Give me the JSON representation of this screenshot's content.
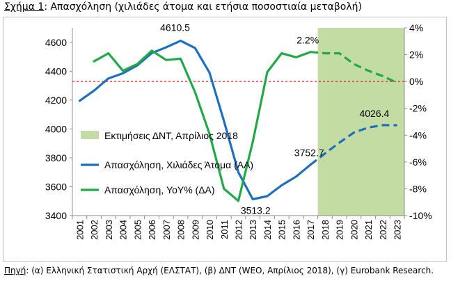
{
  "title": {
    "label": "Σχήμα 1",
    "text": ": Απασχόληση (χιλιάδες άτομα και ετήσια ποσοστιαία μεταβολή)"
  },
  "source": {
    "label": "Πηγή",
    "text": ": (α) Ελληνική Στατιστική Αρχή (ΕΛΣΤΑΤ), (β) ΔΝΤ (WEO, Απρίλιος 2018), (γ) Eurobank Research."
  },
  "colors": {
    "blue": "#1f6fbf",
    "green": "#21a847",
    "shade": "#c3dca4",
    "zero_line": "#e02020",
    "grid": "#d9d9d9"
  },
  "chart_data": {
    "type": "line",
    "x": [
      2001,
      2002,
      2003,
      2004,
      2005,
      2006,
      2007,
      2008,
      2009,
      2010,
      2011,
      2012,
      2013,
      2014,
      2015,
      2016,
      2017,
      2018,
      2019,
      2020,
      2021,
      2022,
      2023
    ],
    "x_tick_labels": [
      "2001",
      "2002",
      "2003",
      "2004",
      "2005",
      "2006",
      "2007",
      "2008",
      "2009",
      "2010",
      "2011",
      "2012",
      "2013",
      "2014",
      "2015",
      "2016",
      "2017",
      "2018",
      "2019",
      "2020",
      "2021",
      "2022",
      "2023"
    ],
    "left_axis": {
      "ylim": [
        3400,
        4700
      ],
      "ticks": [
        3400,
        3600,
        3800,
        4000,
        4200,
        4400,
        4600
      ]
    },
    "right_axis": {
      "ylim": [
        -10,
        4
      ],
      "ticks": [
        -10,
        -8,
        -6,
        -4,
        -2,
        0,
        2,
        4
      ],
      "tick_labels": [
        "-10%",
        "-8%",
        "-6%",
        "-4%",
        "-2%",
        "0%",
        "2%",
        "4%"
      ]
    },
    "shaded_region": {
      "x_range": [
        2017.5,
        2023.5
      ],
      "label": "Εκτιμήσεις ΔΝΤ, Απρίλιος 2018"
    },
    "series": [
      {
        "name": "Απασχόληση, Χιλιάδες Άτομα (ΑΑ)",
        "axis": "left",
        "color": "#1f6fbf",
        "values": [
          4195,
          4265,
          4350,
          4385,
          4440,
          4525,
          4565,
          4610.5,
          4560,
          4390,
          4055,
          3700,
          3513.2,
          3535,
          3610,
          3670,
          3752.7,
          3830,
          3905,
          3975,
          4010,
          4026.4,
          4026
        ],
        "dashed_from": 2017
      },
      {
        "name": "Απασχόληση, YoY% (ΔΑ)",
        "axis": "right",
        "color": "#21a847",
        "values": [
          null,
          1.5,
          2.1,
          0.8,
          1.3,
          2.3,
          1.6,
          1.7,
          -0.8,
          -3.9,
          -8.0,
          -8.9,
          -4.5,
          0.7,
          2.1,
          1.8,
          2.2,
          2.1,
          2.1,
          1.3,
          0.8,
          0.4,
          -0.1
        ],
        "dashed_from": 2017
      }
    ],
    "zero_reference": {
      "axis": "right",
      "value": 0,
      "style": "dashed"
    },
    "annotations": [
      {
        "text": "4610.5",
        "x": 2008,
        "y": 4610.5,
        "axis": "left"
      },
      {
        "text": "3513.2",
        "x": 2013,
        "y": 3513.2,
        "axis": "left"
      },
      {
        "text": "3752.7",
        "x": 2017,
        "y": 3752.7,
        "axis": "left"
      },
      {
        "text": "4026.4",
        "x": 2022,
        "y": 4026.4,
        "axis": "left"
      },
      {
        "text": "2.2%",
        "x": 2017,
        "y": 2.2,
        "axis": "right"
      }
    ],
    "legend": {
      "position": "lower-left",
      "entries": [
        {
          "label": "Εκτιμήσεις ΔΝΤ, Απρίλιος 2018",
          "kind": "area",
          "color": "#c3dca4"
        },
        {
          "label": "Απασχόληση, Χιλιάδες Άτομα (ΑΑ)",
          "kind": "line",
          "color": "#1f6fbf"
        },
        {
          "label": "Απασχόληση, YoY% (ΔΑ)",
          "kind": "line",
          "color": "#21a847"
        }
      ]
    },
    "grid": false
  }
}
